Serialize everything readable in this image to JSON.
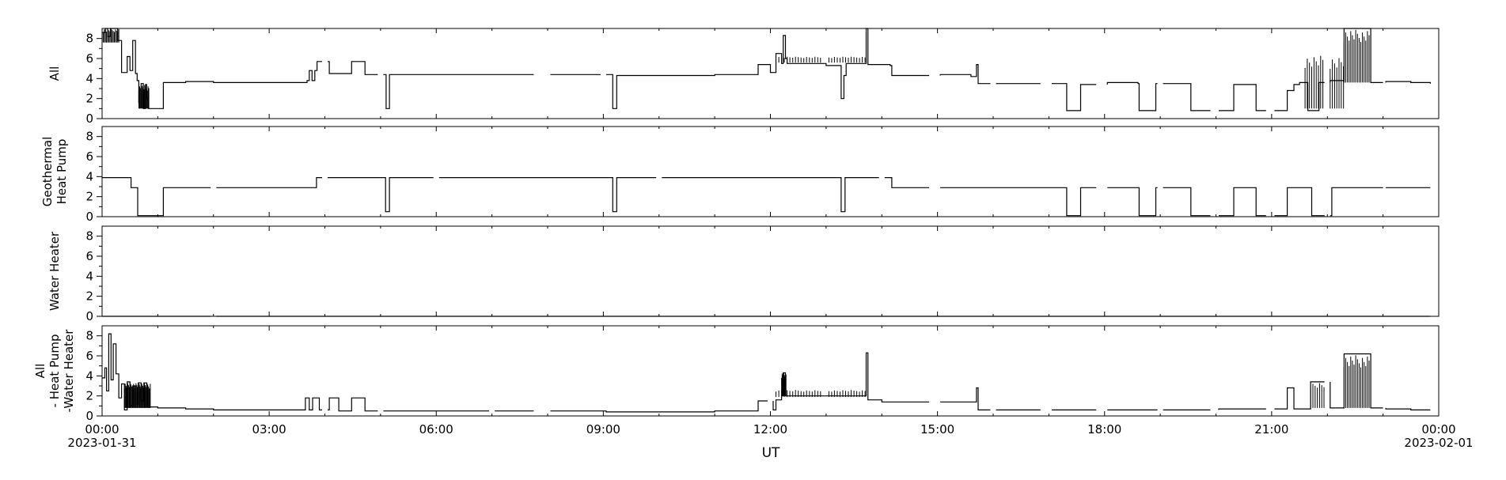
{
  "chart_data": {
    "type": "line",
    "xlabel": "UT",
    "x_range_hours": [
      0,
      24
    ],
    "x_ticks": [
      {
        "h": 0,
        "label": "00:00",
        "sublabel": "2023-01-31"
      },
      {
        "h": 3,
        "label": "03:00",
        "sublabel": ""
      },
      {
        "h": 6,
        "label": "06:00",
        "sublabel": ""
      },
      {
        "h": 9,
        "label": "09:00",
        "sublabel": ""
      },
      {
        "h": 12,
        "label": "12:00",
        "sublabel": ""
      },
      {
        "h": 15,
        "label": "15:00",
        "sublabel": ""
      },
      {
        "h": 18,
        "label": "18:00",
        "sublabel": ""
      },
      {
        "h": 21,
        "label": "21:00",
        "sublabel": ""
      },
      {
        "h": 24,
        "label": "00:00",
        "sublabel": "2023-02-01"
      }
    ],
    "y_ticks": [
      "0",
      "2",
      "4",
      "6",
      "8"
    ],
    "ylim": [
      0,
      9
    ],
    "grid": false,
    "line_color": "#000000",
    "gaps_hours": [
      [
        1.95,
        2.05
      ],
      [
        2.95,
        3.05
      ],
      [
        3.95,
        4.05
      ],
      [
        4.95,
        5.05
      ],
      [
        5.95,
        6.05
      ],
      [
        6.95,
        7.05
      ],
      [
        7.75,
        8.05
      ],
      [
        8.95,
        9.05
      ],
      [
        9.95,
        10.05
      ],
      [
        10.95,
        11.05
      ],
      [
        11.95,
        12.05
      ],
      [
        12.95,
        13.05
      ],
      [
        13.95,
        14.05
      ],
      [
        14.85,
        15.05
      ],
      [
        15.95,
        16.05
      ],
      [
        16.85,
        17.05
      ],
      [
        17.85,
        18.05
      ],
      [
        18.95,
        19.05
      ],
      [
        19.9,
        20.05
      ],
      [
        20.9,
        21.05
      ],
      [
        21.95,
        22.05
      ],
      [
        23.0,
        23.05
      ]
    ],
    "panels": [
      {
        "ylabel_lines": [
          "All"
        ],
        "points": [
          [
            0.0,
            8.6
          ],
          [
            0.06,
            9.0
          ],
          [
            0.1,
            8.2
          ],
          [
            0.15,
            9.0
          ],
          [
            0.22,
            9.0
          ],
          [
            0.28,
            7.8
          ],
          [
            0.35,
            4.6
          ],
          [
            0.45,
            6.2
          ],
          [
            0.5,
            4.8
          ],
          [
            0.55,
            7.8
          ],
          [
            0.6,
            4.5
          ],
          [
            0.63,
            3.8
          ],
          [
            0.66,
            1.6
          ],
          [
            0.7,
            3.5
          ],
          [
            0.74,
            1.0
          ],
          [
            0.78,
            3.4
          ],
          [
            0.8,
            2.0
          ],
          [
            0.83,
            1.0
          ],
          [
            0.87,
            1.0
          ],
          [
            1.08,
            1.0
          ],
          [
            1.1,
            3.6
          ],
          [
            1.5,
            3.7
          ],
          [
            2.0,
            3.6
          ],
          [
            2.5,
            3.6
          ],
          [
            3.0,
            3.6
          ],
          [
            3.6,
            3.6
          ],
          [
            3.68,
            3.8
          ],
          [
            3.72,
            4.8
          ],
          [
            3.77,
            3.8
          ],
          [
            3.82,
            4.8
          ],
          [
            3.86,
            5.7
          ],
          [
            4.05,
            5.7
          ],
          [
            4.08,
            4.5
          ],
          [
            4.45,
            4.5
          ],
          [
            4.48,
            5.7
          ],
          [
            4.7,
            5.7
          ],
          [
            4.72,
            4.4
          ],
          [
            5.07,
            4.4
          ],
          [
            5.1,
            1.0
          ],
          [
            5.14,
            1.0
          ],
          [
            5.16,
            4.4
          ],
          [
            6.0,
            4.4
          ],
          [
            7.0,
            4.4
          ],
          [
            7.75,
            4.4
          ],
          [
            8.05,
            4.4
          ],
          [
            8.95,
            4.4
          ],
          [
            9.05,
            4.4
          ],
          [
            9.15,
            4.4
          ],
          [
            9.17,
            1.0
          ],
          [
            9.22,
            1.0
          ],
          [
            9.24,
            4.3
          ],
          [
            10.0,
            4.3
          ],
          [
            11.0,
            4.4
          ],
          [
            11.75,
            4.4
          ],
          [
            11.78,
            5.4
          ],
          [
            11.95,
            5.4
          ],
          [
            12.0,
            4.6
          ],
          [
            12.05,
            4.6
          ],
          [
            12.1,
            6.5
          ],
          [
            12.2,
            5.5
          ],
          [
            12.23,
            8.3
          ],
          [
            12.27,
            6.0
          ],
          [
            12.3,
            5.5
          ],
          [
            13.0,
            5.3
          ],
          [
            13.25,
            5.3
          ],
          [
            13.27,
            2.0
          ],
          [
            13.3,
            2.0
          ],
          [
            13.32,
            4.3
          ],
          [
            13.36,
            5.5
          ],
          [
            13.7,
            5.5
          ],
          [
            13.72,
            9.0
          ],
          [
            13.75,
            5.4
          ],
          [
            14.0,
            5.4
          ],
          [
            14.15,
            5.3
          ],
          [
            14.18,
            4.3
          ],
          [
            14.85,
            4.3
          ],
          [
            15.05,
            4.4
          ],
          [
            15.6,
            4.2
          ],
          [
            15.7,
            5.4
          ],
          [
            15.73,
            3.5
          ],
          [
            15.95,
            3.5
          ],
          [
            16.85,
            3.5
          ],
          [
            17.3,
            3.5
          ],
          [
            17.32,
            0.8
          ],
          [
            17.55,
            0.8
          ],
          [
            17.57,
            3.4
          ],
          [
            17.85,
            3.4
          ],
          [
            18.05,
            3.6
          ],
          [
            18.5,
            3.6
          ],
          [
            18.6,
            3.5
          ],
          [
            18.62,
            0.8
          ],
          [
            18.9,
            0.8
          ],
          [
            18.92,
            3.5
          ],
          [
            19.3,
            3.5
          ],
          [
            19.5,
            3.5
          ],
          [
            19.55,
            0.8
          ],
          [
            19.9,
            0.8
          ],
          [
            20.05,
            0.8
          ],
          [
            20.3,
            0.8
          ],
          [
            20.32,
            3.4
          ],
          [
            20.7,
            3.4
          ],
          [
            20.72,
            0.8
          ],
          [
            20.9,
            0.8
          ],
          [
            21.05,
            0.8
          ],
          [
            21.25,
            0.8
          ],
          [
            21.28,
            2.8
          ],
          [
            21.4,
            3.4
          ],
          [
            21.5,
            3.6
          ],
          [
            21.6,
            3.6
          ],
          [
            21.65,
            0.8
          ],
          [
            21.8,
            0.8
          ],
          [
            21.85,
            3.6
          ],
          [
            21.95,
            3.6
          ],
          [
            22.05,
            3.8
          ],
          [
            22.25,
            3.8
          ],
          [
            22.3,
            9.0
          ],
          [
            22.75,
            9.0
          ],
          [
            22.78,
            3.6
          ],
          [
            23.05,
            3.7
          ],
          [
            23.5,
            3.6
          ],
          [
            23.8,
            3.6
          ],
          [
            23.85,
            3.5
          ]
        ]
      },
      {
        "ylabel_lines": [
          "Geothermal",
          "Heat Pump"
        ],
        "points": [
          [
            0.0,
            3.9
          ],
          [
            0.5,
            3.9
          ],
          [
            0.52,
            2.9
          ],
          [
            0.62,
            2.9
          ],
          [
            0.64,
            0.1
          ],
          [
            1.08,
            0.1
          ],
          [
            1.1,
            2.9
          ],
          [
            3.8,
            2.9
          ],
          [
            3.85,
            3.9
          ],
          [
            5.07,
            3.9
          ],
          [
            5.09,
            0.5
          ],
          [
            5.14,
            0.5
          ],
          [
            5.16,
            3.9
          ],
          [
            9.15,
            3.9
          ],
          [
            9.17,
            0.5
          ],
          [
            9.22,
            0.5
          ],
          [
            9.24,
            3.9
          ],
          [
            13.25,
            3.9
          ],
          [
            13.27,
            0.5
          ],
          [
            13.32,
            0.5
          ],
          [
            13.34,
            3.9
          ],
          [
            14.15,
            3.9
          ],
          [
            14.18,
            2.9
          ],
          [
            17.3,
            2.9
          ],
          [
            17.32,
            0.1
          ],
          [
            17.55,
            0.1
          ],
          [
            17.57,
            2.9
          ],
          [
            18.6,
            2.9
          ],
          [
            18.62,
            0.1
          ],
          [
            18.9,
            0.1
          ],
          [
            18.92,
            2.9
          ],
          [
            19.5,
            2.9
          ],
          [
            19.55,
            0.1
          ],
          [
            20.3,
            0.1
          ],
          [
            20.32,
            2.9
          ],
          [
            20.7,
            2.9
          ],
          [
            20.72,
            0.1
          ],
          [
            21.25,
            0.1
          ],
          [
            21.28,
            2.9
          ],
          [
            21.7,
            2.9
          ],
          [
            21.72,
            0.1
          ],
          [
            22.05,
            0.1
          ],
          [
            22.08,
            2.9
          ],
          [
            23.85,
            2.9
          ]
        ]
      },
      {
        "ylabel_lines": [
          "Water Heater"
        ],
        "points": [
          [
            0.0,
            0.0
          ],
          [
            23.85,
            0.0
          ]
        ]
      },
      {
        "ylabel_lines": [
          "All",
          "- Heat Pump",
          "-Water Heater"
        ],
        "points": [
          [
            0.0,
            3.8
          ],
          [
            0.05,
            4.8
          ],
          [
            0.08,
            2.5
          ],
          [
            0.12,
            8.2
          ],
          [
            0.16,
            3.6
          ],
          [
            0.2,
            7.2
          ],
          [
            0.25,
            4.2
          ],
          [
            0.3,
            1.8
          ],
          [
            0.35,
            3.2
          ],
          [
            0.4,
            0.6
          ],
          [
            0.45,
            3.4
          ],
          [
            0.5,
            1.0
          ],
          [
            0.55,
            3.0
          ],
          [
            0.6,
            1.2
          ],
          [
            0.65,
            3.3
          ],
          [
            0.7,
            1.5
          ],
          [
            0.75,
            3.3
          ],
          [
            0.8,
            0.9
          ],
          [
            0.87,
            0.9
          ],
          [
            1.0,
            0.8
          ],
          [
            1.5,
            0.7
          ],
          [
            2.0,
            0.6
          ],
          [
            3.0,
            0.6
          ],
          [
            3.6,
            0.6
          ],
          [
            3.65,
            1.8
          ],
          [
            3.72,
            0.6
          ],
          [
            3.78,
            1.8
          ],
          [
            3.85,
            1.8
          ],
          [
            3.9,
            0.6
          ],
          [
            4.05,
            0.6
          ],
          [
            4.08,
            1.8
          ],
          [
            4.2,
            1.8
          ],
          [
            4.25,
            0.5
          ],
          [
            4.45,
            0.5
          ],
          [
            4.48,
            1.8
          ],
          [
            4.7,
            1.8
          ],
          [
            4.72,
            0.5
          ],
          [
            6.0,
            0.5
          ],
          [
            7.75,
            0.5
          ],
          [
            9.05,
            0.4
          ],
          [
            10.0,
            0.4
          ],
          [
            11.0,
            0.5
          ],
          [
            11.75,
            0.5
          ],
          [
            11.78,
            1.5
          ],
          [
            11.95,
            1.5
          ],
          [
            12.05,
            0.6
          ],
          [
            12.1,
            1.6
          ],
          [
            12.2,
            2.0
          ],
          [
            12.23,
            4.3
          ],
          [
            12.27,
            2.0
          ],
          [
            13.0,
            2.0
          ],
          [
            13.6,
            2.0
          ],
          [
            13.7,
            2.0
          ],
          [
            13.72,
            6.3
          ],
          [
            13.75,
            1.6
          ],
          [
            14.0,
            1.4
          ],
          [
            14.15,
            1.4
          ],
          [
            14.85,
            1.4
          ],
          [
            15.05,
            1.4
          ],
          [
            15.6,
            1.4
          ],
          [
            15.7,
            2.8
          ],
          [
            15.73,
            0.6
          ],
          [
            16.85,
            0.6
          ],
          [
            17.3,
            0.6
          ],
          [
            17.85,
            0.6
          ],
          [
            18.05,
            0.6
          ],
          [
            18.5,
            0.6
          ],
          [
            19.3,
            0.6
          ],
          [
            19.9,
            0.6
          ],
          [
            20.05,
            0.7
          ],
          [
            20.9,
            0.7
          ],
          [
            21.05,
            0.7
          ],
          [
            21.25,
            0.7
          ],
          [
            21.28,
            2.8
          ],
          [
            21.4,
            0.7
          ],
          [
            21.6,
            0.7
          ],
          [
            21.7,
            3.4
          ],
          [
            21.95,
            3.4
          ],
          [
            22.05,
            0.8
          ],
          [
            22.25,
            0.8
          ],
          [
            22.3,
            6.2
          ],
          [
            22.75,
            6.2
          ],
          [
            22.78,
            0.8
          ],
          [
            23.05,
            0.7
          ],
          [
            23.5,
            0.6
          ],
          [
            23.85,
            0.6
          ]
        ]
      }
    ],
    "bursts": [
      {
        "panel": 0,
        "from": 12.1,
        "to": 13.7,
        "low": 5.6,
        "high": 6.2,
        "step": 0.05
      },
      {
        "panel": 0,
        "from": 21.6,
        "to": 21.95,
        "low": 1.0,
        "high": 6.4,
        "step": 0.04
      },
      {
        "panel": 0,
        "from": 22.05,
        "to": 22.3,
        "low": 1.0,
        "high": 6.3,
        "step": 0.04
      },
      {
        "panel": 0,
        "from": 22.3,
        "to": 22.75,
        "low": 3.6,
        "high": 9.0,
        "step": 0.03
      },
      {
        "panel": 0,
        "from": 0.02,
        "to": 0.3,
        "low": 7.6,
        "high": 9.0,
        "step": 0.02
      },
      {
        "panel": 0,
        "from": 0.66,
        "to": 0.85,
        "low": 1.0,
        "high": 3.4,
        "step": 0.015
      },
      {
        "panel": 3,
        "from": 12.1,
        "to": 13.7,
        "low": 1.9,
        "high": 2.6,
        "step": 0.05
      },
      {
        "panel": 3,
        "from": 21.7,
        "to": 21.95,
        "low": 0.8,
        "high": 3.4,
        "step": 0.04
      },
      {
        "panel": 3,
        "from": 22.3,
        "to": 22.75,
        "low": 0.8,
        "high": 6.2,
        "step": 0.03
      },
      {
        "panel": 3,
        "from": 12.2,
        "to": 12.28,
        "low": 2.0,
        "high": 4.4,
        "step": 0.01
      },
      {
        "panel": 3,
        "from": 0.4,
        "to": 0.87,
        "low": 0.8,
        "high": 3.4,
        "step": 0.015
      }
    ]
  }
}
